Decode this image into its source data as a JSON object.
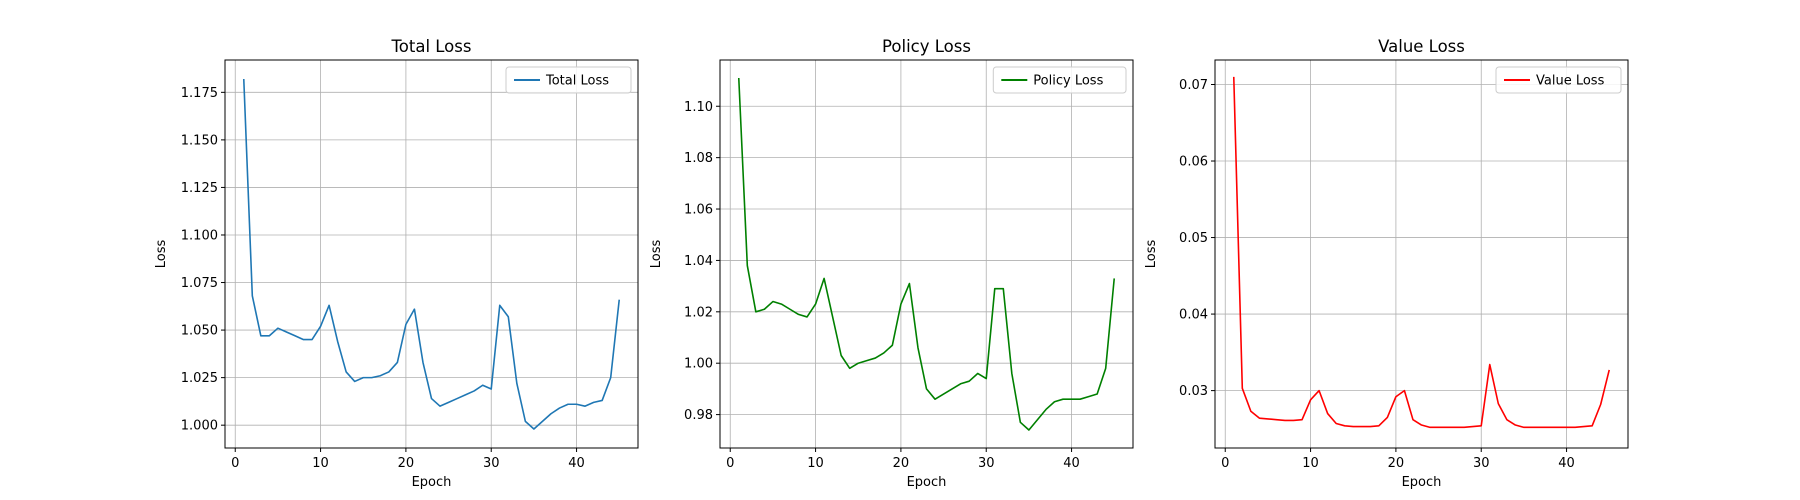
{
  "chart_data": [
    {
      "type": "line",
      "title": "Total Loss",
      "xlabel": "Epoch",
      "ylabel": "Loss",
      "xlim": [
        -1.2,
        47.2
      ],
      "ylim": [
        0.988,
        1.192
      ],
      "xticks": [
        0,
        10,
        20,
        30,
        40
      ],
      "yticks": [
        1.0,
        1.025,
        1.05,
        1.075,
        1.1,
        1.125,
        1.15,
        1.175
      ],
      "ytick_decimals": 3,
      "grid": true,
      "legend": "top-right",
      "series": [
        {
          "name": "Total Loss",
          "color": "#1f77b4",
          "x": [
            1,
            2,
            3,
            4,
            5,
            6,
            7,
            8,
            9,
            10,
            11,
            12,
            13,
            14,
            15,
            16,
            17,
            18,
            19,
            20,
            21,
            22,
            23,
            24,
            25,
            26,
            27,
            28,
            29,
            30,
            31,
            32,
            33,
            34,
            35,
            36,
            37,
            38,
            39,
            40,
            41,
            42,
            43,
            44,
            45
          ],
          "values": [
            1.182,
            1.068,
            1.047,
            1.047,
            1.051,
            1.049,
            1.047,
            1.045,
            1.045,
            1.052,
            1.063,
            1.044,
            1.028,
            1.023,
            1.025,
            1.025,
            1.026,
            1.028,
            1.033,
            1.053,
            1.061,
            1.033,
            1.014,
            1.01,
            1.012,
            1.014,
            1.016,
            1.018,
            1.021,
            1.019,
            1.063,
            1.057,
            1.022,
            1.002,
            0.998,
            1.002,
            1.006,
            1.009,
            1.011,
            1.011,
            1.01,
            1.012,
            1.013,
            1.025,
            1.066
          ]
        }
      ]
    },
    {
      "type": "line",
      "title": "Policy Loss",
      "xlabel": "Epoch",
      "ylabel": "Loss",
      "xlim": [
        -1.2,
        47.2
      ],
      "ylim": [
        0.967,
        1.118
      ],
      "xticks": [
        0,
        10,
        20,
        30,
        40
      ],
      "yticks": [
        0.98,
        1.0,
        1.02,
        1.04,
        1.06,
        1.08,
        1.1
      ],
      "ytick_decimals": 2,
      "grid": true,
      "legend": "top-right",
      "series": [
        {
          "name": "Policy Loss",
          "color": "#008000",
          "x": [
            1,
            2,
            3,
            4,
            5,
            6,
            7,
            8,
            9,
            10,
            11,
            12,
            13,
            14,
            15,
            16,
            17,
            18,
            19,
            20,
            21,
            22,
            23,
            24,
            25,
            26,
            27,
            28,
            29,
            30,
            31,
            32,
            33,
            34,
            35,
            36,
            37,
            38,
            39,
            40,
            41,
            42,
            43,
            44,
            45
          ],
          "values": [
            1.111,
            1.038,
            1.02,
            1.021,
            1.024,
            1.023,
            1.021,
            1.019,
            1.018,
            1.023,
            1.033,
            1.018,
            1.003,
            0.998,
            1.0,
            1.001,
            1.002,
            1.004,
            1.007,
            1.023,
            1.031,
            1.006,
            0.99,
            0.986,
            0.988,
            0.99,
            0.992,
            0.993,
            0.996,
            0.994,
            1.029,
            1.029,
            0.996,
            0.977,
            0.974,
            0.978,
            0.982,
            0.985,
            0.986,
            0.986,
            0.986,
            0.987,
            0.988,
            0.998,
            1.033
          ]
        }
      ]
    },
    {
      "type": "line",
      "title": "Value Loss",
      "xlabel": "Epoch",
      "ylabel": "Loss",
      "xlim": [
        -1.2,
        47.2
      ],
      "ylim": [
        0.0225,
        0.0732
      ],
      "xticks": [
        0,
        10,
        20,
        30,
        40
      ],
      "yticks": [
        0.03,
        0.04,
        0.05,
        0.06,
        0.07
      ],
      "ytick_decimals": 2,
      "grid": true,
      "legend": "top-right",
      "series": [
        {
          "name": "Value Loss",
          "color": "#ff0000",
          "x": [
            1,
            2,
            3,
            4,
            5,
            6,
            7,
            8,
            9,
            10,
            11,
            12,
            13,
            14,
            15,
            16,
            17,
            18,
            19,
            20,
            21,
            22,
            23,
            24,
            25,
            26,
            27,
            28,
            29,
            30,
            31,
            32,
            33,
            34,
            35,
            36,
            37,
            38,
            39,
            40,
            41,
            42,
            43,
            44,
            45
          ],
          "values": [
            0.071,
            0.0303,
            0.0273,
            0.0264,
            0.0263,
            0.0262,
            0.0261,
            0.0261,
            0.0262,
            0.0288,
            0.03,
            0.027,
            0.0257,
            0.0254,
            0.0253,
            0.0253,
            0.0253,
            0.0254,
            0.0265,
            0.0292,
            0.03,
            0.0262,
            0.0255,
            0.0252,
            0.0252,
            0.0252,
            0.0252,
            0.0252,
            0.0253,
            0.0254,
            0.0334,
            0.0283,
            0.0262,
            0.0255,
            0.0252,
            0.0252,
            0.0252,
            0.0252,
            0.0252,
            0.0252,
            0.0252,
            0.0253,
            0.0254,
            0.0282,
            0.0327
          ]
        }
      ]
    }
  ]
}
